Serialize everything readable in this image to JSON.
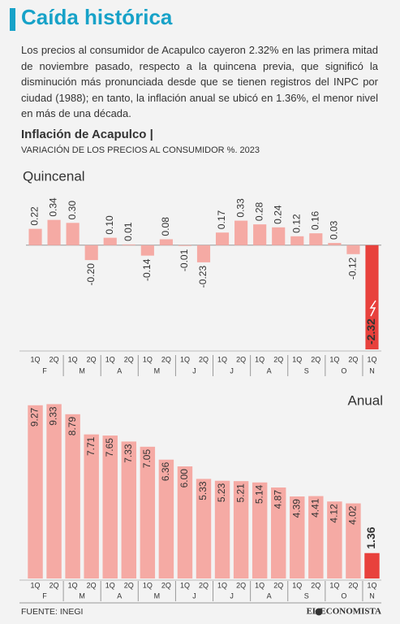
{
  "header": {
    "title": "Caída histórica",
    "body": "Los precios al consumidor de Acapulco cayeron 2.32% en las primera mitad de noviembre pasado, respecto a la quincena previa, que significó la disminución más pronunciada desde que se tienen registros del INPC por ciudad (1988); en tanto, la inflación anual se ubicó en 1.36%, el menor nivel en más de una década.",
    "section": "Inflación de Acapulco |",
    "subtitle": "VARIACIÓN DE LOS PRECIOS AL CONSUMIDOR %. 2023"
  },
  "chart_data": [
    {
      "type": "bar",
      "title": "Quincenal",
      "categories": [
        "1Q",
        "2Q",
        "1Q",
        "2Q",
        "1Q",
        "2Q",
        "1Q",
        "2Q",
        "1Q",
        "2Q",
        "1Q",
        "2Q",
        "1Q",
        "2Q",
        "1Q",
        "2Q",
        "1Q",
        "2Q",
        "1Q"
      ],
      "months": [
        "F",
        "M",
        "A",
        "M",
        "J",
        "J",
        "A",
        "S",
        "O",
        "N"
      ],
      "values": [
        0.22,
        0.34,
        0.3,
        -0.2,
        0.1,
        0.01,
        -0.14,
        0.08,
        -0.01,
        -0.23,
        0.17,
        0.33,
        0.28,
        0.24,
        0.12,
        0.16,
        0.03,
        -0.12,
        -2.32
      ],
      "value_labels": [
        "0.22",
        "0.34",
        "0.30",
        "-0.20",
        "0.10",
        "0.01",
        "-0.14",
        "0.08",
        "-0.01",
        "-0.23",
        "0.17",
        "0.33",
        "0.28",
        "0.24",
        "0.12",
        "0.16",
        "0.03",
        "-0.12",
        "-2.32"
      ],
      "color": "#f5aaa4",
      "highlight_color": "#e8413c",
      "ylim": [
        -1.4,
        0.5
      ]
    },
    {
      "type": "bar",
      "title": "Anual",
      "categories": [
        "1Q",
        "2Q",
        "1Q",
        "2Q",
        "1Q",
        "2Q",
        "1Q",
        "2Q",
        "1Q",
        "2Q",
        "1Q",
        "2Q",
        "1Q",
        "2Q",
        "1Q",
        "2Q",
        "1Q",
        "2Q",
        "1Q"
      ],
      "months": [
        "F",
        "M",
        "A",
        "M",
        "J",
        "J",
        "A",
        "S",
        "O",
        "N"
      ],
      "values": [
        9.27,
        9.33,
        8.79,
        7.71,
        7.65,
        7.33,
        7.05,
        6.36,
        6.0,
        5.33,
        5.23,
        5.21,
        5.14,
        4.87,
        4.39,
        4.41,
        4.12,
        4.02,
        1.36
      ],
      "value_labels": [
        "9.27",
        "9.33",
        "8.79",
        "7.71",
        "7.65",
        "7.33",
        "7.05",
        "6.36",
        "6.00",
        "5.33",
        "5.23",
        "5.21",
        "5.14",
        "4.87",
        "4.39",
        "4.41",
        "4.12",
        "4.02",
        "1.36"
      ],
      "color": "#f5aaa4",
      "highlight_color": "#e8413c",
      "ylim": [
        0,
        10
      ]
    }
  ],
  "footer": {
    "source": "FUENTE: INEGI",
    "brand": "EL ECONOMISTA"
  }
}
